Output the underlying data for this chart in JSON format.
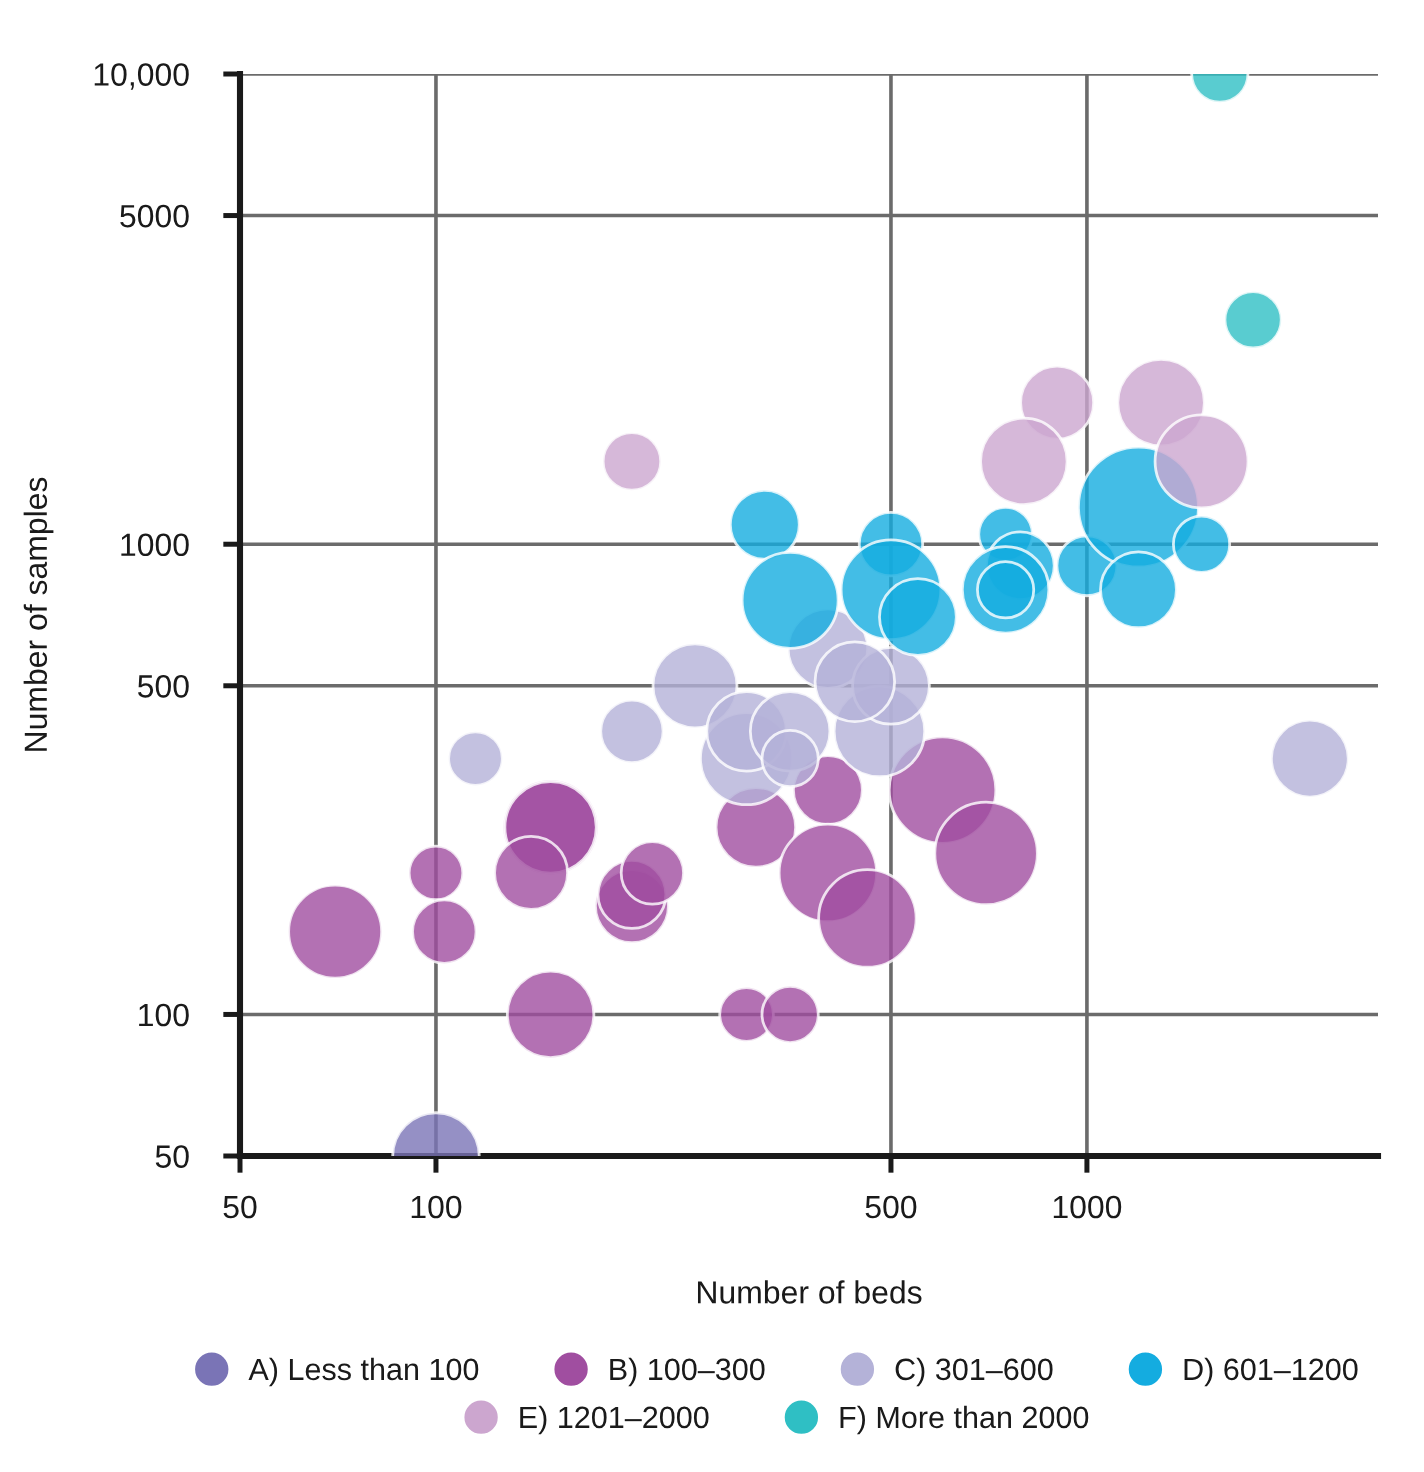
{
  "chart_data": {
    "type": "bubble",
    "xlabel": "Number of beds",
    "ylabel": "Number of samples",
    "log": "xy",
    "xlim": [
      50,
      2800
    ],
    "ylim": [
      50,
      10000
    ],
    "xticks": [
      50,
      100,
      500,
      1000
    ],
    "yticks": [
      50,
      100,
      500,
      1000,
      5000,
      {
        "value": 10000,
        "label": "10,000"
      }
    ],
    "grid": true,
    "legend": "bottom",
    "marker": "circle",
    "series": [
      {
        "name": "A) Less than 100",
        "color": "#7a74b6",
        "x": [
          100
        ],
        "values": [
          50
        ],
        "sizes": [
          0.52
        ]
      },
      {
        "name": "B) 100–300",
        "color": "#a04ea0",
        "x": [
          70,
          100,
          103,
          150,
          150,
          140,
          150,
          200,
          200,
          215,
          300,
          350,
          310,
          400,
          400,
          460,
          600,
          700
        ],
        "values": [
          150,
          200,
          150,
          250,
          250,
          200,
          100,
          170,
          180,
          200,
          100,
          100,
          250,
          300,
          200,
          160,
          300,
          220
        ],
        "sizes": [
          0.6,
          0.2,
          0.28,
          0.62,
          0.58,
          0.37,
          0.52,
          0.37,
          0.32,
          0.27,
          0.2,
          0.22,
          0.44,
          0.33,
          0.66,
          0.66,
          0.79,
          0.73
        ]
      },
      {
        "name": "C) 301–600",
        "color": "#b4b2d8",
        "x": [
          115,
          200,
          250,
          300,
          300,
          350,
          350,
          400,
          480,
          500,
          440,
          2200
        ],
        "values": [
          350,
          400,
          500,
          350,
          400,
          400,
          350,
          600,
          400,
          500,
          510,
          350
        ],
        "sizes": [
          0.2,
          0.27,
          0.49,
          0.59,
          0.44,
          0.44,
          0.22,
          0.44,
          0.57,
          0.41,
          0.44,
          0.41
        ]
      },
      {
        "name": "D) 601–1200",
        "color": "#14ace0",
        "x": [
          320,
          350,
          500,
          500,
          550,
          750,
          790,
          750,
          750,
          1000,
          1200,
          1200,
          1500
        ],
        "values": [
          1100,
          760,
          1000,
          800,
          700,
          1050,
          900,
          800,
          800,
          900,
          1200,
          800,
          1000
        ],
        "sizes": [
          0.33,
          0.64,
          0.28,
          0.69,
          0.41,
          0.2,
          0.32,
          0.52,
          0.22,
          0.25,
          1,
          0.4,
          0.22
        ]
      },
      {
        "name": "E) 1201–2000",
        "color": "#cca6cf",
        "x": [
          200,
          900,
          800,
          1300,
          1500
        ],
        "values": [
          1500,
          2000,
          1500,
          2000,
          1500
        ],
        "sizes": [
          0.23,
          0.37,
          0.52,
          0.52,
          0.6
        ]
      },
      {
        "name": "F) More than 2000",
        "color": "#2fbfc4",
        "x": [
          1600,
          1800
        ],
        "values": [
          10000,
          3000
        ],
        "sizes": [
          0.22,
          0.22
        ]
      }
    ]
  }
}
